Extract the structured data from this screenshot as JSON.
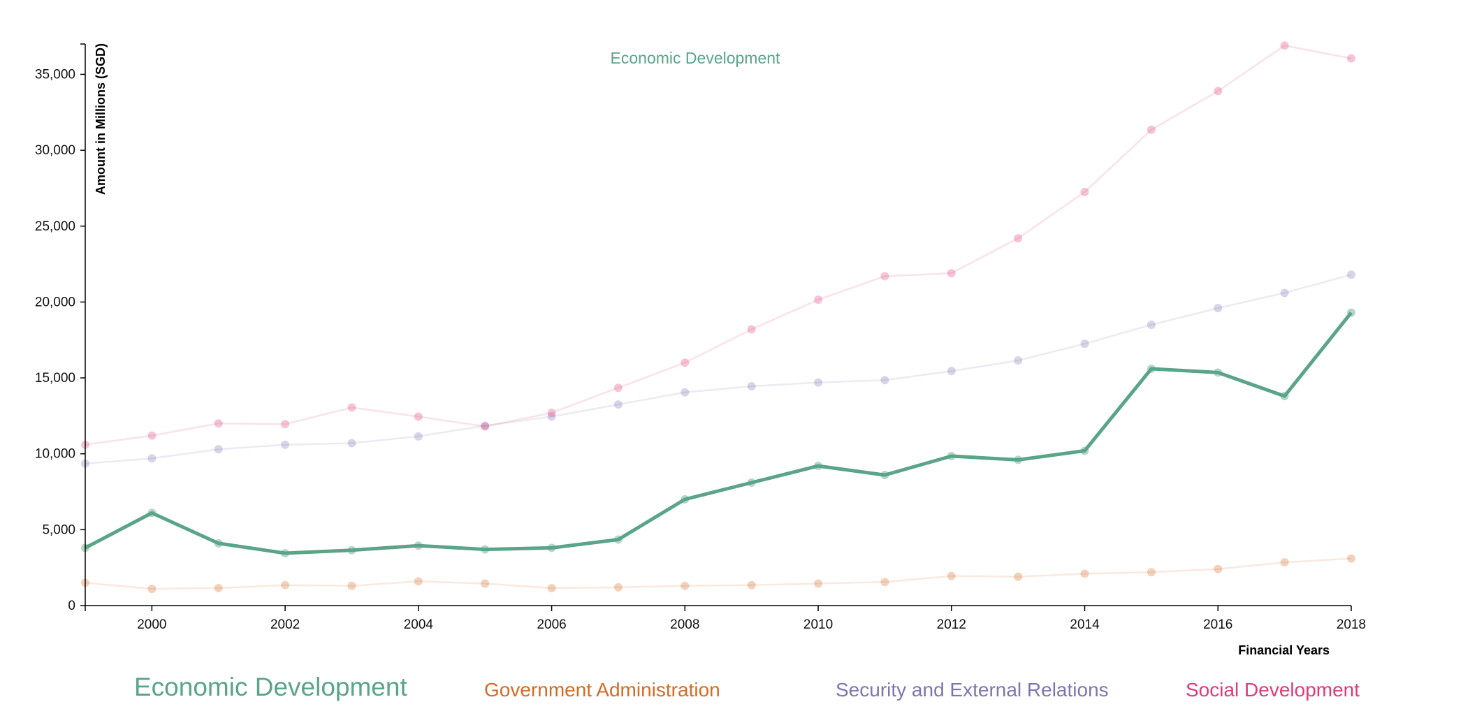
{
  "chart_data": {
    "type": "line",
    "title": "Economic Development",
    "xlabel": "Financial Years",
    "ylabel": "Amount in Millions (SGD)",
    "xlim": [
      1999,
      2018
    ],
    "ylim": [
      0,
      37000
    ],
    "x_ticks": [
      "2000",
      "2002",
      "2004",
      "2006",
      "2008",
      "2010",
      "2012",
      "2014",
      "2016",
      "2018"
    ],
    "y_ticks": [
      "0",
      "5,000",
      "10,000",
      "15,000",
      "20,000",
      "25,000",
      "30,000",
      "35,000"
    ],
    "grid": false,
    "legend_position": "bottom",
    "highlighted_series": "Economic Development",
    "x": [
      1999,
      2000,
      2001,
      2002,
      2003,
      2004,
      2005,
      2006,
      2007,
      2008,
      2009,
      2010,
      2011,
      2012,
      2013,
      2014,
      2015,
      2016,
      2017,
      2018
    ],
    "series": [
      {
        "name": "Economic Development",
        "color": "#5aa488",
        "values": [
          3800,
          6100,
          4100,
          3450,
          3650,
          3950,
          3700,
          3800,
          4350,
          7000,
          8100,
          9200,
          8600,
          9850,
          9600,
          10200,
          15600,
          15350,
          13800,
          19300
        ]
      },
      {
        "name": "Government Administration",
        "color": "#d46b25",
        "values": [
          1500,
          1100,
          1150,
          1350,
          1300,
          1600,
          1450,
          1150,
          1200,
          1300,
          1350,
          1450,
          1550,
          1950,
          1900,
          2100,
          2200,
          2400,
          2850,
          3100
        ]
      },
      {
        "name": "Security and External Relations",
        "color": "#7d75b3",
        "values": [
          9350,
          9700,
          10300,
          10600,
          10700,
          11150,
          11850,
          12450,
          13250,
          14050,
          14450,
          14700,
          14850,
          15450,
          16150,
          17250,
          18500,
          19600,
          20600,
          21800
        ]
      },
      {
        "name": "Social Development",
        "color": "#dd3b7b",
        "values": [
          10600,
          11200,
          12000,
          11950,
          13050,
          12450,
          11800,
          12700,
          14350,
          16000,
          18200,
          20150,
          21700,
          21900,
          24200,
          27250,
          31350,
          33900,
          36900,
          36050
        ]
      }
    ]
  }
}
